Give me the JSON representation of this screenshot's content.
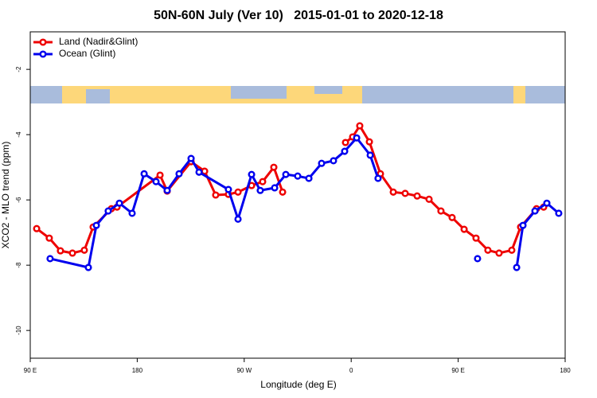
{
  "chart_data": {
    "type": "line",
    "title": "50N-60N July (Ver 10)   2015-01-01 to 2020-12-18",
    "x_label": "Longitude (deg E)",
    "y_label": "XCO2 - MLO trend (ppm)",
    "xlim": [
      90,
      540
    ],
    "xticks": [
      {
        "value": 90,
        "label": "90 E"
      },
      180,
      {
        "value": 270,
        "label": "90 W"
      },
      {
        "value": 360,
        "label": "0"
      },
      {
        "value": 450,
        "label": "90 E"
      },
      {
        "value": 540,
        "label": "180"
      }
    ],
    "ylim": [
      -10.85,
      -0.85
    ],
    "yticks": [
      -2,
      -4,
      -6,
      -8,
      -10
    ],
    "legend": "top-left",
    "series": [
      {
        "name": "Land (Nadir&Glint)",
        "color": "#ee0000",
        "x": [
          95.4,
          106,
          115.4,
          125.5,
          135.5,
          142.9,
          158.3,
          163,
          199.2,
          205.2,
          225.3,
          236.7,
          246,
          256.7,
          264.8,
          276.2,
          285.5,
          294.9,
          302.3,
          330,
          355.2,
          361.2,
          367.2,
          375.3,
          384.6,
          395.4,
          405.4,
          415.5,
          425.5,
          435.5,
          444.9,
          455,
          465,
          475,
          484.4,
          495.1,
          502.5,
          515.9,
          521.9
        ],
        "values": [
          -6.88,
          -7.17,
          -7.56,
          -7.63,
          -7.54,
          -6.83,
          -6.27,
          -6.22,
          -5.24,
          -5.73,
          -4.83,
          -5.12,
          -5.85,
          -5.83,
          -5.76,
          -5.56,
          -5.44,
          -5.0,
          -5.76,
          null,
          -4.24,
          -4.07,
          -3.73,
          -4.22,
          -5.2,
          -5.76,
          -5.8,
          -5.88,
          -5.98,
          -6.34,
          -6.54,
          -6.9,
          -7.17,
          -7.54,
          -7.63,
          -7.54,
          -6.83,
          -6.27,
          -6.22
        ]
      },
      {
        "name": "Ocean (Glint)",
        "color": "#0000ee",
        "x": [
          106.7,
          138.9,
          145.6,
          155.6,
          165,
          175.7,
          185.8,
          195.8,
          205.2,
          215.2,
          225.3,
          232,
          256.7,
          264.8,
          276.2,
          283.5,
          295.6,
          305,
          315,
          324.4,
          335.1,
          345.1,
          354.5,
          364.6,
          376,
          382.6,
          420,
          466.3,
          480,
          499.2,
          504.5,
          514.6,
          524.6,
          534.6
        ],
        "values": [
          -7.8,
          -8.07,
          -6.78,
          -6.34,
          -6.1,
          -6.41,
          -5.2,
          -5.44,
          -5.71,
          -5.2,
          -4.73,
          -5.15,
          -5.68,
          -6.59,
          -5.22,
          -5.71,
          -5.63,
          -5.22,
          -5.27,
          -5.34,
          -4.88,
          -4.8,
          -4.51,
          -4.1,
          -4.63,
          -5.34,
          null,
          -7.8,
          null,
          -8.07,
          -6.78,
          -6.34,
          -6.1,
          -6.41
        ]
      }
    ]
  }
}
